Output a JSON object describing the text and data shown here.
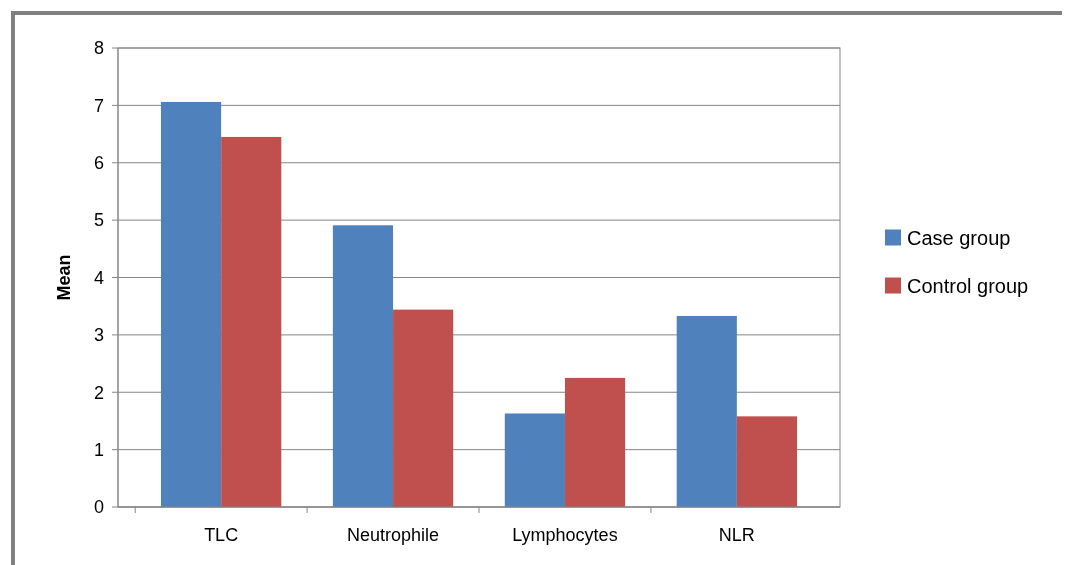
{
  "chart_data": {
    "type": "bar",
    "ylabel": "Mean",
    "categories": [
      "TLC",
      "Neutrophile",
      "Lymphocytes",
      "NLR"
    ],
    "series": [
      {
        "name": "Case group",
        "color": "#4f81bd",
        "values": [
          7.06,
          4.91,
          1.63,
          3.33
        ]
      },
      {
        "name": "Control group",
        "color": "#c0504d",
        "values": [
          6.45,
          3.44,
          2.25,
          1.58
        ]
      }
    ],
    "ylim": [
      0,
      8
    ],
    "yticks": [
      0,
      1,
      2,
      3,
      4,
      5,
      6,
      7,
      8
    ],
    "grid": "y",
    "legend": "right"
  }
}
